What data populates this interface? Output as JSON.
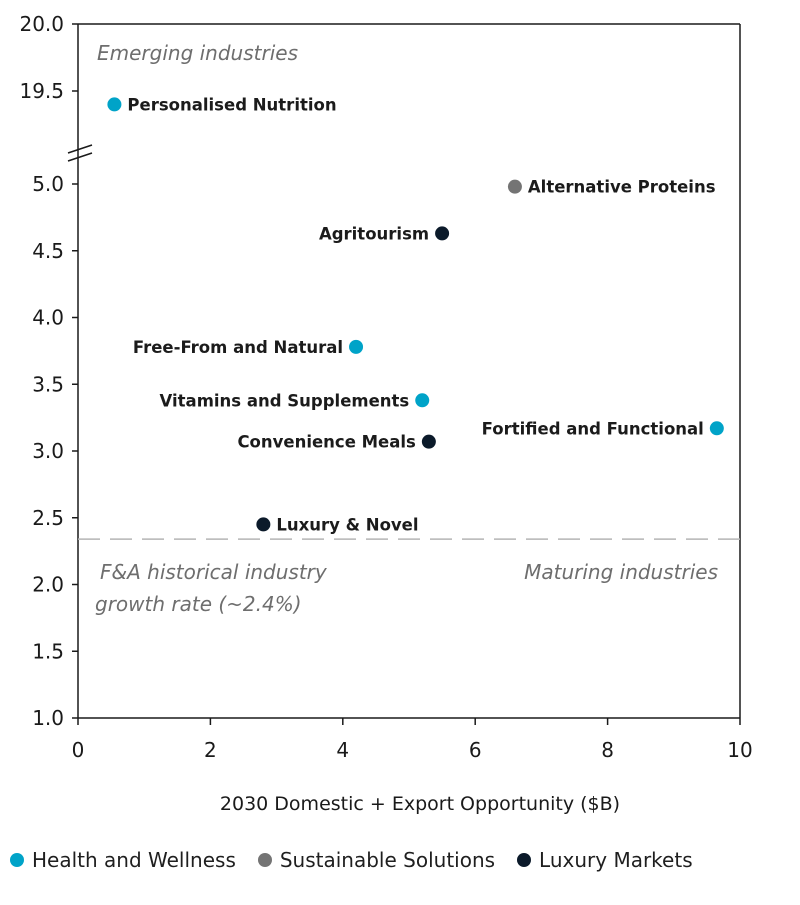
{
  "chart_data": {
    "type": "scatter",
    "title": "",
    "xlabel": "2030 Domestic + Export Opportunity ($B)",
    "ylabel": "",
    "xlim": [
      0,
      10
    ],
    "ylim_lower": [
      1.0,
      5.0
    ],
    "ylim_upper": [
      19.0,
      20.0
    ],
    "y_axis_break": true,
    "x_ticks": [
      "0",
      "2",
      "4",
      "6",
      "8",
      "10"
    ],
    "x_tick_values": [
      0,
      2,
      4,
      6,
      8,
      10
    ],
    "y_ticks": [
      "1.0",
      "1.5",
      "2.0",
      "2.5",
      "3.0",
      "3.5",
      "4.0",
      "4.5",
      "5.0",
      "19.5",
      "20.0"
    ],
    "y_tick_values": [
      1.0,
      1.5,
      2.0,
      2.5,
      3.0,
      3.5,
      4.0,
      4.5,
      5.0,
      19.5,
      20.0
    ],
    "grid": false,
    "legend_position": "bottom",
    "series": [
      {
        "name": "Health and Wellness",
        "color": "#00a3c8",
        "points": [
          {
            "label": "Personalised Nutrition",
            "x": 0.55,
            "y": 19.4,
            "label_side": "right"
          },
          {
            "label": "Free-From and Natural",
            "x": 4.2,
            "y": 3.78,
            "label_side": "left"
          },
          {
            "label": "Vitamins and Supplements",
            "x": 5.2,
            "y": 3.38,
            "label_side": "left"
          },
          {
            "label": "Fortified and Functional",
            "x": 9.65,
            "y": 3.17,
            "label_side": "left"
          }
        ]
      },
      {
        "name": "Sustainable Solutions",
        "color": "#747474",
        "points": [
          {
            "label": "Alternative Proteins",
            "x": 6.6,
            "y": 4.98,
            "label_side": "right"
          }
        ]
      },
      {
        "name": "Luxury Markets",
        "color": "#0b1a2a",
        "points": [
          {
            "label": "Agritourism",
            "x": 5.5,
            "y": 4.63,
            "label_side": "left"
          },
          {
            "label": "Convenience Meals",
            "x": 5.3,
            "y": 3.07,
            "label_side": "left"
          },
          {
            "label": "Luxury & Novel",
            "x": 2.8,
            "y": 2.45,
            "label_side": "right"
          }
        ]
      }
    ],
    "reference_line": {
      "y": 2.34,
      "style": "dashed",
      "color": "#b5b5b5",
      "label": "F&A historical industry growth rate (~2.4%)"
    },
    "annotations": {
      "top_left": "Emerging industries",
      "bottom_right": "Maturing industries",
      "bottom_left_line1": "F&A historical industry",
      "bottom_left_line2": "growth rate (~2.4%)"
    }
  },
  "legend": [
    {
      "label": "Health and Wellness",
      "color": "#00a3c8"
    },
    {
      "label": "Sustainable Solutions",
      "color": "#747474"
    },
    {
      "label": "Luxury Markets",
      "color": "#0b1a2a"
    }
  ]
}
